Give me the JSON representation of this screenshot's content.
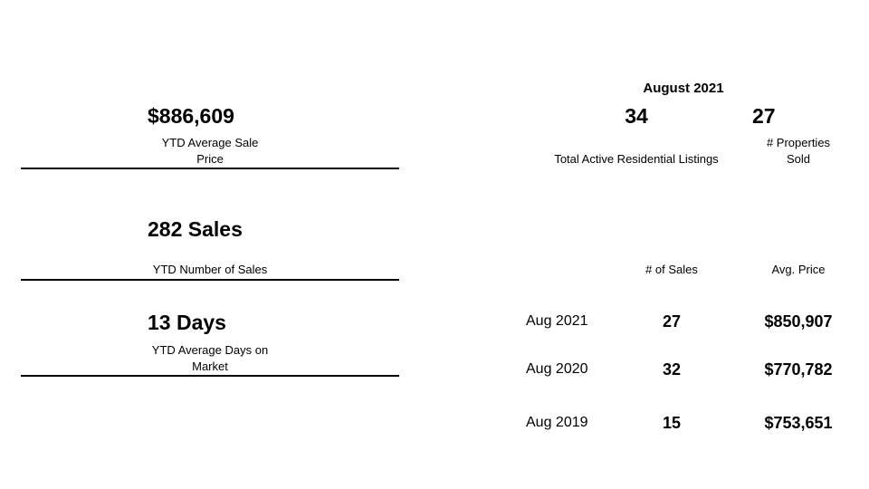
{
  "ytd_avg_price": {
    "value": "$886,609",
    "label_line1": "YTD Average Sale",
    "label_line2": "Price"
  },
  "ytd_sales": {
    "value": "282 Sales",
    "label": "YTD Number of Sales"
  },
  "ytd_days": {
    "value": "13 Days",
    "label_line1": "YTD Average Days on",
    "label_line2": "Market"
  },
  "month": {
    "title": "August 2021",
    "active_listings": {
      "value": "34",
      "label": "Total Active Residential Listings"
    },
    "sold": {
      "value": "27",
      "label_line1": "# Properties",
      "label_line2": "Sold"
    }
  },
  "comparison": {
    "headers": {
      "sales": "# of Sales",
      "price": "Avg. Price"
    },
    "rows": [
      {
        "period": "Aug 2021",
        "sales": "27",
        "price": "$850,907"
      },
      {
        "period": "Aug 2020",
        "sales": "32",
        "price": "$770,782"
      },
      {
        "period": "Aug 2019",
        "sales": "15",
        "price": "$753,651"
      }
    ]
  }
}
